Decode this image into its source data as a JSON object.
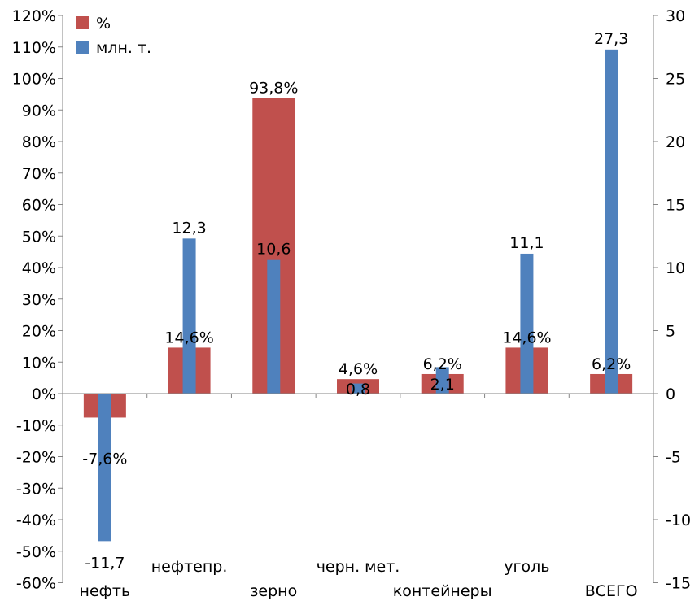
{
  "chart_data": {
    "type": "bar",
    "categories": [
      "нефть",
      "нефтепр.",
      "зерно",
      "черн. мет.",
      "контейнеры",
      "уголь",
      "ВСЕГО"
    ],
    "series": [
      {
        "name": "%",
        "axis": "left",
        "color": "#c0504d",
        "values": [
          -7.6,
          14.6,
          93.8,
          4.6,
          6.2,
          14.6,
          6.2
        ],
        "labels": [
          "-7,6%",
          "14,6%",
          "93,8%",
          "4,6%",
          "6,2%",
          "14,6%",
          "6,2%"
        ]
      },
      {
        "name": "млн. т.",
        "axis": "right",
        "color": "#4f81bd",
        "values": [
          -11.7,
          12.3,
          10.6,
          0.8,
          2.1,
          11.1,
          27.3
        ],
        "labels": [
          "-11,7",
          "12,3",
          "10,6",
          "0,8",
          "2,1",
          "11,1",
          "27,3"
        ]
      }
    ],
    "y_left": {
      "ylim": [
        -60,
        120
      ],
      "tick_labels": [
        "-60%",
        "-50%",
        "-40%",
        "-30%",
        "-20%",
        "-10%",
        "0%",
        "10%",
        "20%",
        "30%",
        "40%",
        "50%",
        "60%",
        "70%",
        "80%",
        "90%",
        "100%",
        "110%",
        "120%"
      ]
    },
    "y_right": {
      "ylim": [
        -15,
        30
      ],
      "tick_labels": [
        "-15",
        "-10",
        "-5",
        "0",
        "5",
        "10",
        "15",
        "20",
        "25",
        "30"
      ]
    },
    "legend": {
      "position": "top-left",
      "entries": [
        "%",
        "млн. т."
      ]
    },
    "grid": false
  }
}
